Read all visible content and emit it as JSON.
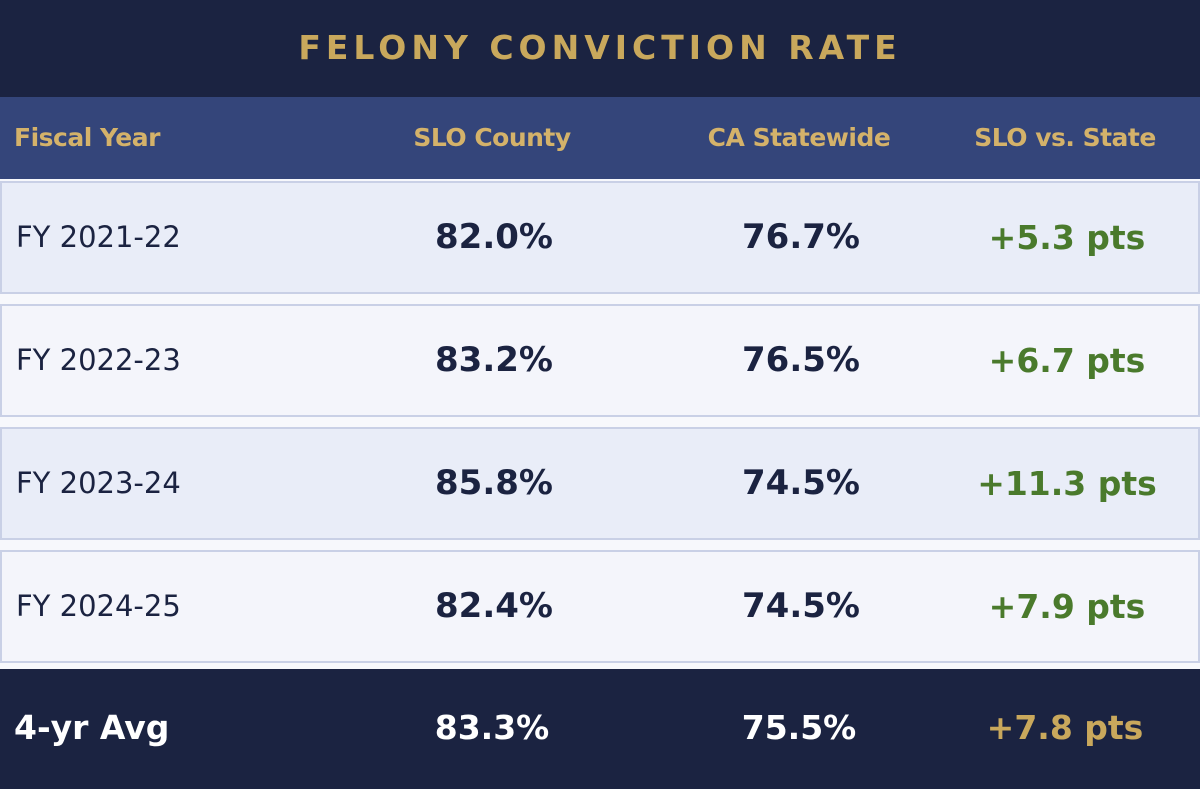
{
  "chart_data": {
    "type": "table",
    "title": "FELONY CONVICTION RATE",
    "columns": [
      "Fiscal Year",
      "SLO County",
      "CA Statewide",
      "SLO vs. State"
    ],
    "rows": [
      {
        "year": "FY 2021-22",
        "slo": "82.0%",
        "state": "76.7%",
        "diff": "+5.3 pts"
      },
      {
        "year": "FY 2022-23",
        "slo": "83.2%",
        "state": "76.5%",
        "diff": "+6.7 pts"
      },
      {
        "year": "FY 2023-24",
        "slo": "85.8%",
        "state": "74.5%",
        "diff": "+11.3 pts"
      },
      {
        "year": "FY 2024-25",
        "slo": "82.4%",
        "state": "74.5%",
        "diff": "+7.9 pts"
      }
    ],
    "summary": {
      "label": "4-yr Avg",
      "slo": "83.3%",
      "state": "75.5%",
      "diff": "+7.8 pts"
    },
    "values": {
      "slo_county_percent": [
        82.0,
        83.2,
        85.8,
        82.4
      ],
      "ca_statewide_percent": [
        76.7,
        76.5,
        74.5,
        74.5
      ],
      "difference_pts": [
        5.3,
        6.7,
        11.3,
        7.9
      ],
      "avg": {
        "slo_county_percent": 83.3,
        "ca_statewide_percent": 75.5,
        "difference_pts": 7.8
      }
    }
  },
  "colors": {
    "navy": "#1b2341",
    "header_blue": "#34457a",
    "gold": "#c9a85c",
    "positive_green": "#4a7a2c",
    "row_light": "#e9edf8",
    "row_lighter": "#f4f5fb"
  }
}
